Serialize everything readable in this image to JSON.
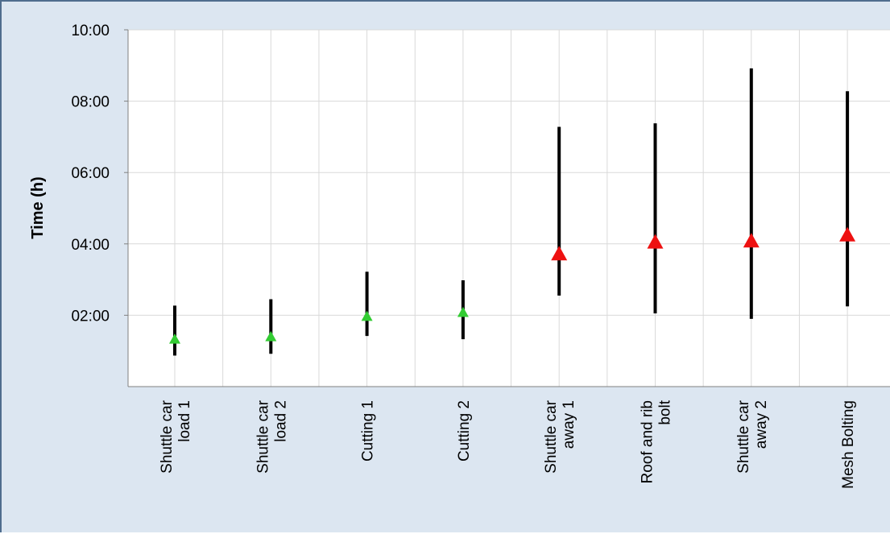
{
  "chart_data": {
    "type": "range",
    "title": "",
    "xlabel": "",
    "ylabel": "Time (h)",
    "y_unit": "hours",
    "ylim": [
      0,
      10
    ],
    "yticks": [
      2,
      4,
      6,
      8,
      10
    ],
    "ytick_labels": [
      "02:00",
      "04:00",
      "06:00",
      "08:00",
      "10:00"
    ],
    "grid": true,
    "categories": [
      [
        "Shuttle car",
        "load 1"
      ],
      [
        "Shuttle car",
        "load 2"
      ],
      [
        "Cutting 1"
      ],
      [
        "Cutting 2"
      ],
      [
        "Shuttle car",
        "away 1"
      ],
      [
        "Roof and rib",
        "bolt"
      ],
      [
        "Shuttle car",
        "away 2"
      ],
      [
        "Mesh Bolting"
      ]
    ],
    "series": [
      {
        "low": [
          0.87,
          0.92,
          1.42,
          1.33,
          2.55,
          2.05,
          1.9,
          2.25
        ],
        "high": [
          2.27,
          2.45,
          3.22,
          2.98,
          7.28,
          7.38,
          8.92,
          8.28
        ],
        "marker": [
          1.33,
          1.4,
          1.97,
          2.08,
          3.72,
          4.05,
          4.08,
          4.25
        ],
        "marker_color": [
          "#33cc33",
          "#33cc33",
          "#33cc33",
          "#33cc33",
          "#ee1111",
          "#ee1111",
          "#ee1111",
          "#ee1111"
        ]
      }
    ],
    "colors": {
      "range_line": "#000000",
      "grid": "#d9d9d9",
      "plot_bg": "#ffffff",
      "outer_bg": "#dce6f1"
    }
  }
}
